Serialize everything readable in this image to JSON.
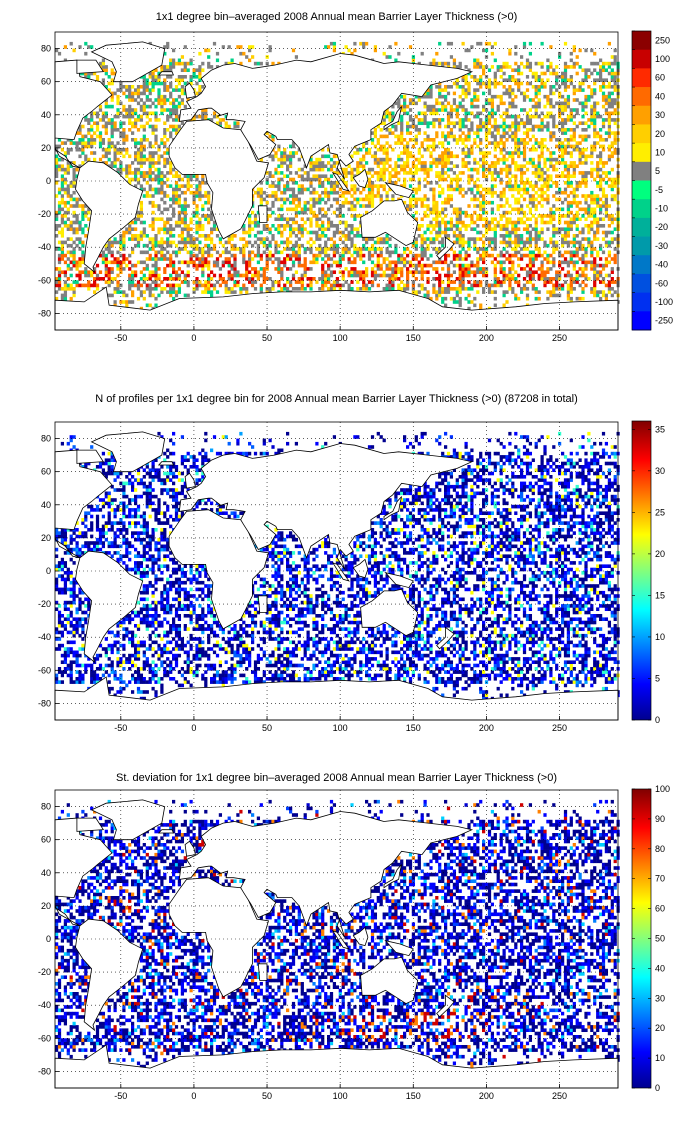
{
  "charts": [
    {
      "title": "1x1 degree bin–averaged 2008 Annual mean Barrier Layer Thickness (>0)",
      "colorbar": {
        "labels": [
          "250",
          "100",
          "60",
          "40",
          "30",
          "20",
          "10",
          "5",
          "-5",
          "-10",
          "-20",
          "-30",
          "-40",
          "-60",
          "-100",
          "-250"
        ],
        "colors": [
          "#8b0000",
          "#c80000",
          "#ff2a00",
          "#ff6a00",
          "#ffa000",
          "#ffcf00",
          "#ffee00",
          "#808080",
          "#00ff7f",
          "#00d28a",
          "#00b09a",
          "#009aaa",
          "#0078c8",
          "#0050e0",
          "#0030f0",
          "#0000ff"
        ]
      },
      "palette": [
        "#808080",
        "#808080",
        "#808080",
        "#ffee00",
        "#ffcf00",
        "#ffa000",
        "#00d28a",
        "#00b09a",
        "#ff6a00",
        "#e00000"
      ]
    },
    {
      "title": "N of profiles per 1x1 degree bin for 2008 Annual mean Barrier Layer Thickness (>0) (87208 in total)",
      "colorbar": {
        "ticks": [
          "35",
          "30",
          "25",
          "20",
          "15",
          "10",
          "5",
          "0"
        ],
        "range": [
          0,
          36
        ]
      },
      "palette": [
        "#00008f",
        "#0000cf",
        "#0000ff",
        "#0000ff",
        "#0030ff",
        "#0060ff",
        "#00a0ff",
        "#30ffcf",
        "#ffff00"
      ]
    },
    {
      "title": "St. deviation for 1x1 degree bin–averaged 2008 Annual mean Barrier Layer Thickness (>0)",
      "colorbar": {
        "ticks": [
          "100",
          "90",
          "80",
          "70",
          "60",
          "50",
          "40",
          "30",
          "20",
          "10",
          "0"
        ],
        "range": [
          0,
          100
        ]
      },
      "palette": [
        "#00008f",
        "#0000cf",
        "#0000ff",
        "#0000ff",
        "#0000ff",
        "#0040ff",
        "#0080ff",
        "#00cfff",
        "#ff8000",
        "#cf0000"
      ]
    }
  ],
  "chart_data": [
    {
      "type": "heatmap",
      "title": "1x1 degree bin–averaged 2008 Annual mean Barrier Layer Thickness (>0)",
      "xlim": [
        -95,
        290
      ],
      "ylim": [
        -90,
        90
      ],
      "xticks": [
        "-50",
        "0",
        "50",
        "100",
        "150",
        "200",
        "250"
      ],
      "yticks": [
        "80",
        "60",
        "40",
        "20",
        "0",
        "-20",
        "-40",
        "-60",
        "-80"
      ],
      "grid": true,
      "colorbar_labels": [
        "250",
        "100",
        "60",
        "40",
        "30",
        "20",
        "10",
        "5",
        "-5",
        "-10",
        "-20",
        "-30",
        "-40",
        "-60",
        "-100",
        "-250"
      ]
    },
    {
      "type": "heatmap",
      "title": "N of profiles per 1x1 degree bin for 2008 Annual mean Barrier Layer Thickness (>0) (87208 in total)",
      "xlim": [
        -95,
        290
      ],
      "ylim": [
        -90,
        90
      ],
      "xticks": [
        "-50",
        "0",
        "50",
        "100",
        "150",
        "200",
        "250"
      ],
      "yticks": [
        "80",
        "60",
        "40",
        "20",
        "0",
        "-20",
        "-40",
        "-60",
        "-80"
      ],
      "grid": true,
      "colorbar_ticks": [
        "35",
        "30",
        "25",
        "20",
        "15",
        "10",
        "5",
        "0"
      ],
      "colorbar_range": [
        0,
        36
      ]
    },
    {
      "type": "heatmap",
      "title": "St. deviation for 1x1 degree bin–averaged 2008 Annual mean Barrier Layer Thickness (>0)",
      "xlim": [
        -95,
        290
      ],
      "ylim": [
        -90,
        90
      ],
      "xticks": [
        "-50",
        "0",
        "50",
        "100",
        "150",
        "200",
        "250"
      ],
      "yticks": [
        "80",
        "60",
        "40",
        "20",
        "0",
        "-20",
        "-40",
        "-60",
        "-80"
      ],
      "grid": true,
      "colorbar_ticks": [
        "100",
        "90",
        "80",
        "70",
        "60",
        "50",
        "40",
        "30",
        "20",
        "10",
        "0"
      ],
      "colorbar_range": [
        0,
        100
      ]
    }
  ]
}
